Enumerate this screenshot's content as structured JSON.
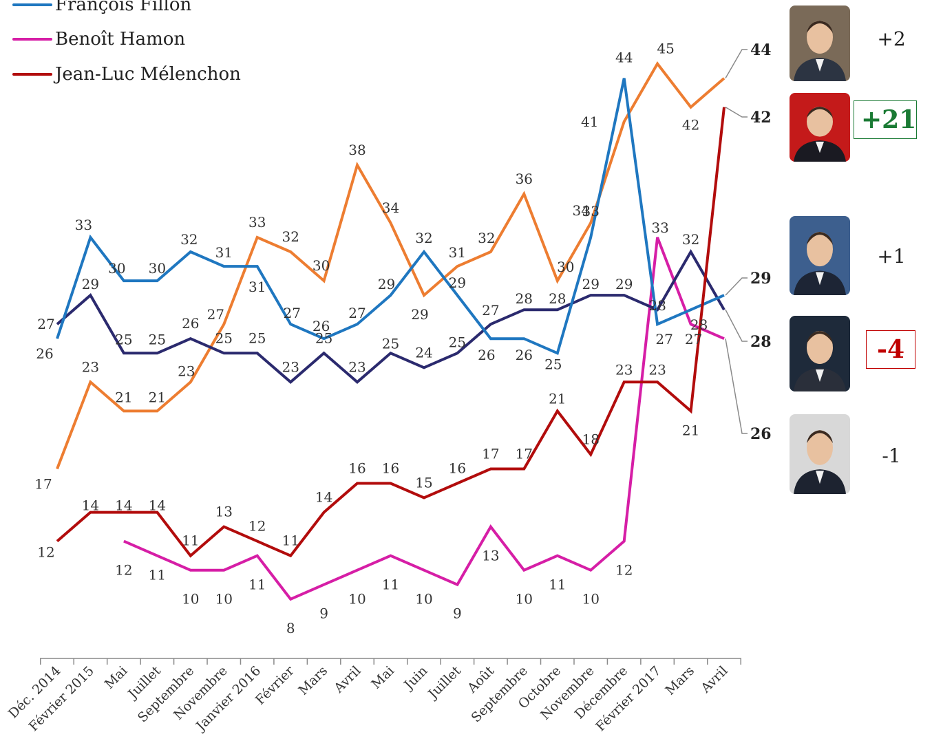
{
  "legend": [
    {
      "name": "François Fillon",
      "color": "#1f77c0"
    },
    {
      "name": "Benoît Hamon",
      "color": "#d61ea6"
    },
    {
      "name": "Jean-Luc Mélenchon",
      "color": "#b20c0c"
    }
  ],
  "changes": [
    {
      "label": "+2",
      "boxed": false,
      "color": "#222222"
    },
    {
      "label": "+21",
      "boxed": true,
      "color": "#1a7a34"
    },
    {
      "label": "+1",
      "boxed": false,
      "color": "#222222"
    },
    {
      "label": "-4",
      "boxed": true,
      "color": "#c00000"
    },
    {
      "label": "-1",
      "boxed": false,
      "color": "#222222"
    }
  ],
  "portraits": [
    {
      "icon": "macron-portrait-icon",
      "bg": "#7a6a58",
      "suit": "#2c3442"
    },
    {
      "icon": "melenchon-portrait-icon",
      "bg": "#c41a1a",
      "suit": "#1a1a22"
    },
    {
      "icon": "fillon-portrait-icon",
      "bg": "#3d5f8e",
      "suit": "#1d2535"
    },
    {
      "icon": "le-pen-portrait-icon",
      "bg": "#1e2a3a",
      "suit": "#2a2f3a"
    },
    {
      "icon": "hamon-portrait-icon",
      "bg": "#d8d8d8",
      "suit": "#1d2330"
    }
  ],
  "chart_data": {
    "type": "line",
    "x_categories": [
      "Déc. 2014",
      "Février 2015",
      "Mai",
      "Juillet",
      "Septembre",
      "Novembre",
      "Janvier 2016",
      "Février",
      "Mars",
      "Avril",
      "Mai",
      "Juin",
      "Juillet",
      "Août",
      "Septembre",
      "Octobre",
      "Novembre",
      "Décembre",
      "Février 2017",
      "Mars",
      "Avril"
    ],
    "series": [
      {
        "name": "François Fillon",
        "color": "#1f77c0",
        "values": [
          26,
          33,
          30,
          30,
          32,
          31,
          31,
          27,
          26,
          27,
          29,
          32,
          29,
          26,
          26,
          25,
          33,
          44,
          27,
          28,
          29
        ]
      },
      {
        "color": "#ed7d31",
        "values": [
          17,
          23,
          21,
          21,
          23,
          27,
          33,
          32,
          30,
          38,
          34,
          29,
          31,
          32,
          36,
          30,
          34,
          41,
          45,
          42,
          44
        ]
      },
      {
        "color": "#2b2a6e",
        "values": [
          27,
          29,
          25,
          25,
          26,
          25,
          25,
          23,
          25,
          23,
          25,
          24,
          25,
          27,
          28,
          28,
          29,
          29,
          28,
          32,
          28
        ]
      },
      {
        "name": "Benoît Hamon",
        "color": "#d61ea6",
        "values": [
          null,
          null,
          12,
          11,
          10,
          10,
          11,
          8,
          9,
          10,
          11,
          10,
          9,
          13,
          10,
          11,
          10,
          12,
          33,
          27,
          26
        ]
      },
      {
        "name": "Jean-Luc Mélenchon",
        "color": "#b20c0c",
        "values": [
          12,
          14,
          14,
          14,
          11,
          13,
          12,
          11,
          14,
          16,
          16,
          15,
          16,
          17,
          17,
          21,
          18,
          23,
          23,
          21,
          42
        ]
      }
    ],
    "end_labels": [
      "44",
      "42",
      "29",
      "28",
      "26"
    ]
  }
}
